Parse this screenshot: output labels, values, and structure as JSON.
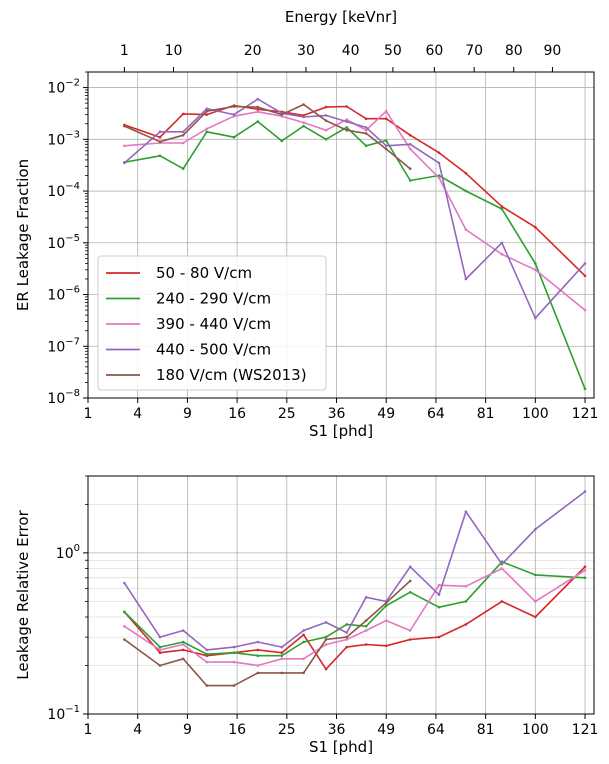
{
  "chart_data": [
    {
      "type": "line",
      "top_axis": {
        "label": "Energy [keVnr]",
        "ticks": [
          {
            "label": "1",
            "s1": 3.0
          },
          {
            "label": "10",
            "s1": 7.4
          },
          {
            "label": "20",
            "s1": 18.6
          },
          {
            "label": "30",
            "s1": 29.0
          },
          {
            "label": "40",
            "s1": 39.5
          },
          {
            "label": "50",
            "s1": 50.9
          },
          {
            "label": "60",
            "s1": 63.5
          },
          {
            "label": "70",
            "s1": 76.9
          },
          {
            "label": "80",
            "s1": 91.5
          },
          {
            "label": "90",
            "s1": 107.0
          }
        ]
      },
      "xlabel": "S1 [phd]",
      "x_ticks": [
        "1",
        "4",
        "9",
        "16",
        "25",
        "36",
        "49",
        "64",
        "81",
        "100",
        "121"
      ],
      "x_scale": "sqrt",
      "xlim": [
        1,
        125
      ],
      "ylabel": "ER Leakage Fraction",
      "y_scale": "log",
      "ylim": [
        1e-08,
        0.02
      ],
      "y_ticks": [
        "10^-8",
        "10^-7",
        "10^-6",
        "10^-5",
        "10^-4",
        "10^-3",
        "10^-2"
      ],
      "grid": true,
      "legend_position": "lower-left",
      "series": [
        {
          "name": "50 - 80 V/cm",
          "color": "#d62728",
          "x": [
            3,
            6,
            8.5,
            11.5,
            15.5,
            19.5,
            24,
            28.5,
            33.5,
            38.5,
            43.5,
            49,
            56,
            65,
            74,
            87,
            100,
            121
          ],
          "y": [
            0.0019,
            0.0011,
            0.0031,
            0.003,
            0.0045,
            0.0038,
            0.0034,
            0.0029,
            0.0042,
            0.0043,
            0.0025,
            0.0025,
            0.0012,
            0.00055,
            0.00022,
            5e-05,
            2e-05,
            2.3e-06
          ]
        },
        {
          "name": "240 - 290 V/cm",
          "color": "#2ca02c",
          "x": [
            3,
            6,
            8.5,
            11.5,
            15.5,
            19.5,
            24,
            28.5,
            33.5,
            38.5,
            43.5,
            49,
            56,
            65,
            74,
            87,
            100,
            121
          ],
          "y": [
            0.00036,
            0.00048,
            0.00027,
            0.0014,
            0.0011,
            0.0022,
            0.00093,
            0.0018,
            0.001,
            0.0017,
            0.00075,
            0.00095,
            0.00016,
            0.0002,
            0.0001,
            4.5e-05,
            4e-06,
            1.5e-08
          ]
        },
        {
          "name": "390 - 440 V/cm",
          "color": "#e377c2",
          "x": [
            3,
            6,
            8.5,
            11.5,
            15.5,
            19.5,
            24,
            28.5,
            33.5,
            38.5,
            43.5,
            49,
            56,
            65,
            74,
            87,
            100,
            121
          ],
          "y": [
            0.00075,
            0.00085,
            0.00085,
            0.0016,
            0.0028,
            0.0034,
            0.0028,
            0.0021,
            0.0015,
            0.0024,
            0.0015,
            0.0035,
            0.00065,
            0.00018,
            1.8e-05,
            6e-06,
            3e-06,
            5e-07
          ]
        },
        {
          "name": "440 - 500 V/cm",
          "color": "#9467bd",
          "x": [
            3,
            6,
            8.5,
            11.5,
            15.5,
            19.5,
            24,
            28.5,
            33.5,
            38.5,
            43.5,
            49,
            56,
            65,
            74,
            87,
            100,
            121
          ],
          "y": [
            0.00035,
            0.0014,
            0.0014,
            0.0039,
            0.003,
            0.006,
            0.0032,
            0.0027,
            0.0029,
            0.0022,
            0.0017,
            0.00075,
            0.0008,
            0.00035,
            2e-06,
            1e-05,
            3.5e-07,
            4e-06
          ]
        },
        {
          "name": "180 V/cm (WS2013)",
          "color": "#8c564b",
          "x": [
            3,
            6,
            8.5,
            11.5,
            15.5,
            19.5,
            24,
            28.5,
            33.5,
            38.5,
            43.5,
            49,
            56
          ],
          "y": [
            0.0018,
            0.0009,
            0.0012,
            0.0035,
            0.0043,
            0.0042,
            0.003,
            0.0047,
            0.0023,
            0.0015,
            0.0013,
            0.00065,
            0.00027
          ]
        }
      ]
    },
    {
      "type": "line",
      "xlabel": "S1 [phd]",
      "x_ticks": [
        "1",
        "4",
        "9",
        "16",
        "25",
        "36",
        "49",
        "64",
        "81",
        "100",
        "121"
      ],
      "x_scale": "sqrt",
      "xlim": [
        1,
        125
      ],
      "ylabel": "Leakage Relative Error",
      "y_scale": "log",
      "ylim": [
        0.1,
        3.0
      ],
      "y_ticks": [
        "10^-1",
        "10^0"
      ],
      "grid": true,
      "series": [
        {
          "name": "50 - 80 V/cm",
          "color": "#d62728",
          "x": [
            3,
            6,
            8.5,
            11.5,
            15.5,
            19.5,
            24,
            28.5,
            33.5,
            38.5,
            43.5,
            49,
            56,
            65,
            74,
            87,
            100,
            121
          ],
          "y": [
            0.43,
            0.24,
            0.25,
            0.23,
            0.24,
            0.25,
            0.24,
            0.31,
            0.19,
            0.26,
            0.27,
            0.265,
            0.29,
            0.3,
            0.36,
            0.5,
            0.4,
            0.82
          ]
        },
        {
          "name": "240 - 290 V/cm",
          "color": "#2ca02c",
          "x": [
            3,
            6,
            8.5,
            11.5,
            15.5,
            19.5,
            24,
            28.5,
            33.5,
            38.5,
            43.5,
            49,
            56,
            65,
            74,
            87,
            100,
            121
          ],
          "y": [
            0.43,
            0.26,
            0.28,
            0.235,
            0.24,
            0.23,
            0.23,
            0.28,
            0.3,
            0.36,
            0.35,
            0.47,
            0.57,
            0.46,
            0.5,
            0.88,
            0.73,
            0.7
          ]
        },
        {
          "name": "390 - 440 V/cm",
          "color": "#e377c2",
          "x": [
            3,
            6,
            8.5,
            11.5,
            15.5,
            19.5,
            24,
            28.5,
            33.5,
            38.5,
            43.5,
            49,
            56,
            65,
            74,
            87,
            100,
            121
          ],
          "y": [
            0.35,
            0.25,
            0.27,
            0.21,
            0.21,
            0.2,
            0.22,
            0.22,
            0.27,
            0.29,
            0.33,
            0.38,
            0.33,
            0.63,
            0.62,
            0.8,
            0.5,
            0.78
          ]
        },
        {
          "name": "440 - 500 V/cm",
          "color": "#9467bd",
          "x": [
            3,
            6,
            8.5,
            11.5,
            15.5,
            19.5,
            24,
            28.5,
            33.5,
            38.5,
            43.5,
            49,
            56,
            65,
            74,
            87,
            100,
            121
          ],
          "y": [
            0.65,
            0.3,
            0.33,
            0.25,
            0.26,
            0.28,
            0.26,
            0.33,
            0.37,
            0.32,
            0.53,
            0.5,
            0.82,
            0.55,
            1.8,
            0.85,
            1.4,
            2.4
          ]
        },
        {
          "name": "180 V/cm (WS2013)",
          "color": "#8c564b",
          "x": [
            3,
            6,
            8.5,
            11.5,
            15.5,
            19.5,
            24,
            28.5,
            33.5,
            38.5,
            43.5,
            49,
            56
          ],
          "y": [
            0.29,
            0.2,
            0.22,
            0.15,
            0.15,
            0.18,
            0.18,
            0.18,
            0.29,
            0.3,
            0.38,
            0.49,
            0.67
          ]
        }
      ]
    }
  ]
}
